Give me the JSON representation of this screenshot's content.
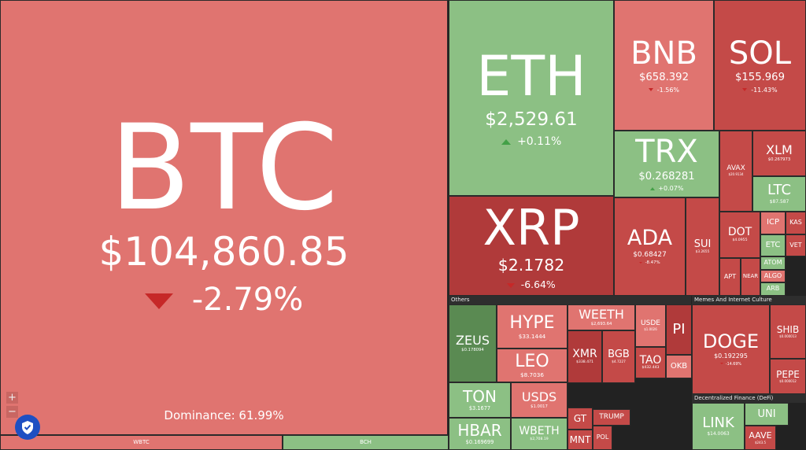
{
  "tiles": [
    {
      "symbol": "BTC",
      "price": "$104,860.85",
      "change": "-2.79%"
    },
    {
      "symbol": "ETH",
      "price": "$2,529.61",
      "change": "+0.11%"
    },
    {
      "symbol": "BNB",
      "price": "$658.392",
      "change": "-1.56%"
    },
    {
      "symbol": "SOL",
      "price": "$155.969",
      "change": "-11.43%"
    },
    {
      "symbol": "TRX",
      "price": "$0.268281",
      "change": "+0.07%"
    },
    {
      "symbol": "AVAX",
      "price": "$20.9134"
    },
    {
      "symbol": "XLM",
      "price": "$0.267973"
    },
    {
      "symbol": "LTC",
      "price": "$87.587"
    },
    {
      "symbol": "XRP",
      "price": "$2.1782",
      "change": "-6.64%"
    },
    {
      "symbol": "ADA",
      "price": "$0.68427",
      "change": "-8.47%"
    },
    {
      "symbol": "SUI",
      "price": "$3.2655"
    },
    {
      "symbol": "DOT",
      "price": "$4.0955"
    },
    {
      "symbol": "ICP"
    },
    {
      "symbol": "KAS"
    },
    {
      "symbol": "ETC"
    },
    {
      "symbol": "VET"
    },
    {
      "symbol": "ATOM"
    },
    {
      "symbol": "ALGO"
    },
    {
      "symbol": "ARB"
    },
    {
      "symbol": "APT"
    },
    {
      "symbol": "NEAR"
    },
    {
      "symbol": "ZEUS",
      "price": "$0.178094"
    },
    {
      "symbol": "HYPE",
      "price": "$33.1444"
    },
    {
      "symbol": "LEO",
      "price": "$8.7036"
    },
    {
      "symbol": "TON",
      "price": "$3.1677"
    },
    {
      "symbol": "HBAR",
      "price": "$0.169699"
    },
    {
      "symbol": "USDS",
      "price": "$1.0017"
    },
    {
      "symbol": "WBETH",
      "price": "$2,708.19"
    },
    {
      "symbol": "WEETH",
      "price": "$2,693.64"
    },
    {
      "symbol": "XMR",
      "price": "$338.471"
    },
    {
      "symbol": "BGB",
      "price": "$4.7227"
    },
    {
      "symbol": "USDE",
      "price": "$1.0026"
    },
    {
      "symbol": "PI"
    },
    {
      "symbol": "TAO",
      "price": "$432.443"
    },
    {
      "symbol": "OKB"
    },
    {
      "symbol": "GT"
    },
    {
      "symbol": "MNT"
    },
    {
      "symbol": "TRUMP"
    },
    {
      "symbol": "POL"
    },
    {
      "symbol": "DOGE",
      "price": "$0.192295",
      "change": "-14.69%"
    },
    {
      "symbol": "SHIB",
      "price": "$0.000013"
    },
    {
      "symbol": "PEPE",
      "price": "$0.000012"
    },
    {
      "symbol": "LINK",
      "price": "$14.0063"
    },
    {
      "symbol": "UNI"
    },
    {
      "symbol": "AAVE",
      "price": "$243.5"
    },
    {
      "symbol": "WBTC"
    },
    {
      "symbol": "BCH"
    }
  ],
  "sections": [
    "Others",
    "Memes And Internet Culture",
    "Decentralized Finance (DeFi)"
  ],
  "dominance": "Dominance: 61.99%"
}
